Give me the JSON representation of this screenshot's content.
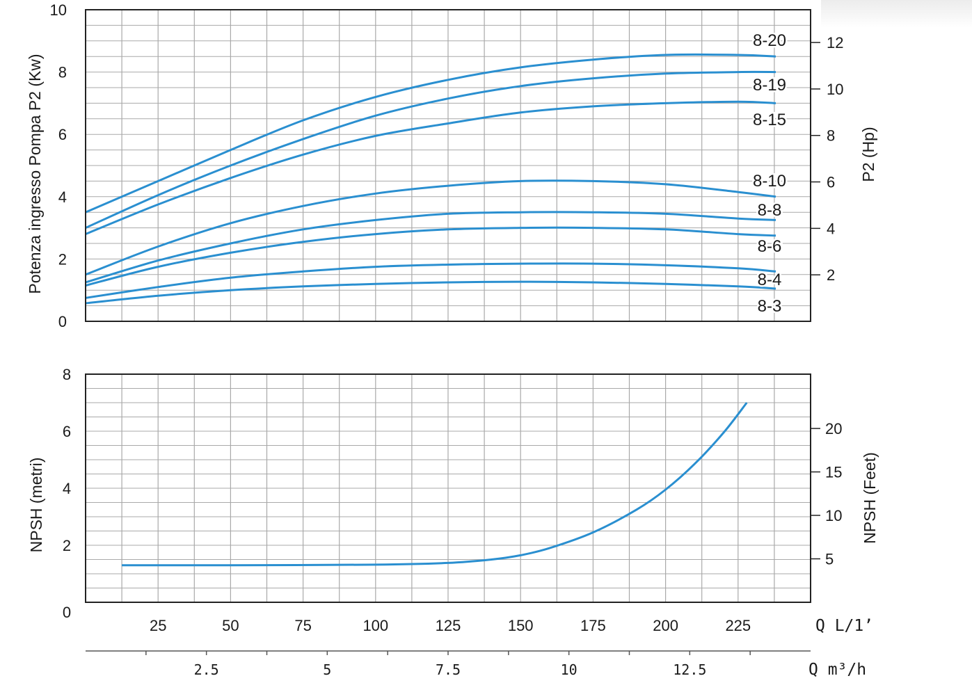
{
  "chart_data": [
    {
      "type": "line",
      "ylabel": "Potenza ingresso Pompa P2 (Kw)",
      "ylabel_right": "P2 (Hp)",
      "xlim": [
        0,
        250
      ],
      "ylim": [
        0,
        10
      ],
      "ylim_right_hp": [
        0,
        13.41
      ],
      "yticks": [
        "0",
        "2",
        "4",
        "6",
        "8",
        "10"
      ],
      "yticks_right": [
        "2",
        "4",
        "6",
        "8",
        "10",
        "12"
      ],
      "grid": true,
      "series": [
        {
          "name": "8-20",
          "x": [
            0,
            25,
            50,
            75,
            100,
            125,
            150,
            175,
            200,
            225,
            238
          ],
          "y": [
            3.5,
            4.5,
            5.5,
            6.45,
            7.2,
            7.75,
            8.15,
            8.4,
            8.55,
            8.55,
            8.5
          ]
        },
        {
          "name": "8-19",
          "x": [
            0,
            25,
            50,
            75,
            100,
            125,
            150,
            175,
            200,
            225,
            238
          ],
          "y": [
            3.0,
            4.05,
            5.0,
            5.85,
            6.6,
            7.15,
            7.55,
            7.8,
            7.95,
            8.0,
            8.0
          ]
        },
        {
          "name": "8-15",
          "x": [
            0,
            25,
            50,
            75,
            100,
            125,
            150,
            175,
            200,
            225,
            238
          ],
          "y": [
            2.8,
            3.75,
            4.6,
            5.35,
            5.95,
            6.35,
            6.7,
            6.9,
            7.0,
            7.05,
            7.0
          ]
        },
        {
          "name": "8-10",
          "x": [
            0,
            25,
            50,
            75,
            100,
            125,
            150,
            175,
            200,
            225,
            238
          ],
          "y": [
            1.5,
            2.4,
            3.15,
            3.7,
            4.1,
            4.35,
            4.5,
            4.5,
            4.4,
            4.15,
            4.0
          ]
        },
        {
          "name": "8-8",
          "x": [
            0,
            25,
            50,
            75,
            100,
            125,
            150,
            175,
            200,
            225,
            238
          ],
          "y": [
            1.25,
            1.95,
            2.5,
            2.95,
            3.25,
            3.45,
            3.5,
            3.5,
            3.45,
            3.3,
            3.25
          ]
        },
        {
          "name": "8-6",
          "x": [
            0,
            25,
            50,
            75,
            100,
            125,
            150,
            175,
            200,
            225,
            238
          ],
          "y": [
            1.15,
            1.75,
            2.2,
            2.55,
            2.8,
            2.95,
            3.0,
            3.0,
            2.95,
            2.8,
            2.75
          ]
        },
        {
          "name": "8-4",
          "x": [
            0,
            25,
            50,
            75,
            100,
            125,
            150,
            175,
            200,
            225,
            238
          ],
          "y": [
            0.75,
            1.1,
            1.4,
            1.6,
            1.75,
            1.82,
            1.85,
            1.85,
            1.8,
            1.7,
            1.6
          ]
        },
        {
          "name": "8-3",
          "x": [
            0,
            25,
            50,
            75,
            100,
            125,
            150,
            175,
            200,
            225,
            238
          ],
          "y": [
            0.58,
            0.82,
            1.0,
            1.12,
            1.2,
            1.25,
            1.27,
            1.25,
            1.2,
            1.12,
            1.05
          ]
        }
      ]
    },
    {
      "type": "line",
      "ylabel": "NPSH (metri)",
      "ylabel_right": "NPSH (Feet)",
      "xlabel": "Q L/1’",
      "xlabel2": "Q m³/h",
      "xlim": [
        0,
        250
      ],
      "ylim": [
        0,
        8
      ],
      "xticks": [
        "25",
        "50",
        "75",
        "100",
        "125",
        "150",
        "175",
        "200",
        "225"
      ],
      "xticks2": [
        "2.5",
        "5",
        "7.5",
        "10",
        "12.5"
      ],
      "yticks": [
        "0",
        "2",
        "4",
        "6",
        "8"
      ],
      "yticks_right": [
        "5",
        "10",
        "15",
        "20"
      ],
      "grid": true,
      "series": [
        {
          "name": "NPSH",
          "x": [
            12.5,
            50,
            100,
            125,
            140,
            150,
            160,
            175,
            190,
            200,
            210,
            220,
            228
          ],
          "y": [
            1.3,
            1.3,
            1.32,
            1.38,
            1.5,
            1.65,
            1.9,
            2.45,
            3.25,
            3.95,
            4.85,
            5.95,
            7.0
          ]
        }
      ]
    }
  ],
  "colors": {
    "curve": "#2a8fd0",
    "grid": "#a9a9a9",
    "frame": "#222222"
  }
}
